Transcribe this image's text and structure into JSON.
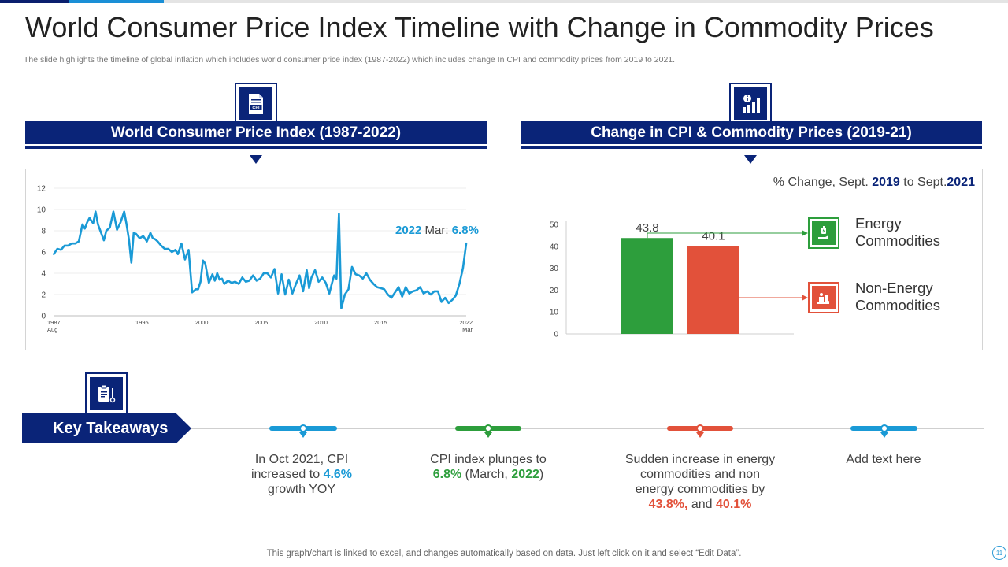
{
  "slide": {
    "title": "World Consumer Price Index Timeline with Change in Commodity Prices",
    "subtitle": "The slide highlights the timeline of global inflation which includes world consumer price index (1987-2022) which includes change In CPI and commodity prices from 2019 to 2021.",
    "footer": "This graph/chart is linked to excel,  and changes automatically based on data. Just left click on it and select “Edit Data”.",
    "page_number": "11"
  },
  "left_panel": {
    "header": "World Consumer Price Index (1987-2022)",
    "icon": "cpi-document-icon",
    "callout": {
      "year": "2022",
      "month": "Mar:",
      "value": "6.8%"
    }
  },
  "right_panel": {
    "header": "Change in CPI & Commodity Prices (2019-21)",
    "icon": "info-bar-chart-icon",
    "caption": {
      "prefix": "% Change, Sept. ",
      "from_year": "2019",
      "middle": " to Sept.",
      "to_year": "2021"
    },
    "legend": [
      {
        "label_line1": "Energy",
        "label_line2": "Commodities",
        "icon": "energy-commodity-icon",
        "color": "#2d9e3c"
      },
      {
        "label_line1": "Non-Energy",
        "label_line2": "Commodities",
        "icon": "non-energy-commodity-icon",
        "color": "#e2513a"
      }
    ]
  },
  "takeaways": {
    "label": "Key Takeaways",
    "icon": "clipboard-icon",
    "items": [
      {
        "line1": "In Oct 2021, CPI",
        "line2a": "increased to ",
        "highlight": "4.6%",
        "line3": "growth YOY",
        "color": "#1a9ad6"
      },
      {
        "line1": "CPI index plunges to",
        "highlight": "6.8%",
        "mid": " (March, ",
        "year": "2022",
        "end": ")",
        "color": "#2d9e3c"
      },
      {
        "line1": "Sudden increase in energy",
        "line2": "commodities and non",
        "line3": "energy commodities by",
        "h1": "43.8%,",
        "and": " and ",
        "h2": "40.1%",
        "color": "#e2513a"
      },
      {
        "line1": "Add text here",
        "color": "#1a9ad6"
      }
    ]
  },
  "colors": {
    "navy": "#0a2478",
    "blue": "#1a9ad6",
    "green": "#2d9e3c",
    "red": "#e2513a"
  },
  "chart_data": [
    {
      "type": "line",
      "title": "World Consumer Price Index (1987-2022)",
      "x_tick_labels": [
        "1987",
        "1995",
        "2000",
        "2005",
        "2010",
        "2015",
        "2022"
      ],
      "x_tick_sublabels": {
        "1987": "Aug",
        "2022": "Mar"
      },
      "x_tick_values": [
        1987.58,
        1995,
        2000,
        2005,
        2010,
        2015,
        2022.17
      ],
      "y_ticks": [
        0,
        2,
        4,
        6,
        8,
        10,
        12
      ],
      "ylim": [
        0,
        12
      ],
      "xlim": [
        1987.58,
        2022.17
      ],
      "series": [
        {
          "name": "World CPI",
          "color": "#1a9ad6",
          "x": [
            1987.6,
            1987.9,
            1988.2,
            1988.5,
            1988.8,
            1989.1,
            1989.4,
            1989.7,
            1990.0,
            1990.2,
            1990.4,
            1990.6,
            1990.9,
            1991.1,
            1991.3,
            1991.5,
            1991.8,
            1992.0,
            1992.3,
            1992.6,
            1992.9,
            1993.2,
            1993.5,
            1993.7,
            1993.9,
            1994.1,
            1994.3,
            1994.5,
            1994.8,
            1995.1,
            1995.4,
            1995.7,
            1995.9,
            1996.1,
            1996.3,
            1996.6,
            1996.9,
            1997.2,
            1997.5,
            1997.8,
            1998.0,
            1998.3,
            1998.6,
            1998.9,
            1999.2,
            1999.5,
            1999.7,
            1999.9,
            2000.1,
            2000.3,
            2000.6,
            2000.9,
            2001.1,
            2001.3,
            2001.5,
            2001.7,
            2001.9,
            2002.2,
            2002.5,
            2002.8,
            2003.1,
            2003.4,
            2003.7,
            2004.0,
            2004.3,
            2004.6,
            2004.9,
            2005.2,
            2005.5,
            2005.8,
            2006.1,
            2006.4,
            2006.7,
            2007.0,
            2007.3,
            2007.6,
            2007.9,
            2008.2,
            2008.5,
            2008.8,
            2009.0,
            2009.2,
            2009.5,
            2009.8,
            2010.1,
            2010.4,
            2010.7,
            2010.9,
            2011.1,
            2011.3,
            2011.5,
            2011.7,
            2012.0,
            2012.3,
            2012.6,
            2012.9,
            2013.2,
            2013.5,
            2013.8,
            2014.1,
            2014.4,
            2014.7,
            2015.0,
            2015.3,
            2015.6,
            2015.9,
            2016.2,
            2016.5,
            2016.8,
            2017.1,
            2017.4,
            2017.7,
            2018.0,
            2018.3,
            2018.6,
            2018.9,
            2019.2,
            2019.5,
            2019.8,
            2020.1,
            2020.4,
            2020.7,
            2021.0,
            2021.3,
            2021.6,
            2021.9,
            2022.17
          ],
          "y": [
            5.8,
            6.3,
            6.2,
            6.6,
            6.6,
            6.8,
            6.8,
            7.0,
            8.6,
            8.2,
            8.8,
            9.2,
            8.7,
            9.8,
            8.6,
            8.0,
            7.1,
            8.0,
            8.3,
            9.8,
            8.1,
            8.8,
            9.8,
            8.6,
            7.2,
            5.0,
            7.8,
            7.7,
            7.3,
            7.5,
            7.0,
            7.8,
            7.3,
            7.2,
            7.0,
            6.6,
            6.3,
            6.3,
            6.0,
            6.2,
            5.8,
            6.8,
            5.3,
            6.2,
            2.2,
            2.5,
            2.5,
            3.2,
            5.2,
            4.9,
            3.1,
            3.9,
            3.3,
            4.0,
            3.4,
            3.5,
            3.0,
            3.3,
            3.1,
            3.2,
            3.0,
            3.6,
            3.2,
            3.3,
            3.8,
            3.3,
            3.5,
            4.0,
            4.0,
            3.6,
            4.4,
            2.1,
            3.9,
            2.0,
            3.4,
            2.1,
            3.0,
            3.8,
            2.3,
            4.3,
            2.6,
            3.6,
            4.3,
            3.2,
            3.6,
            3.1,
            2.1,
            3.0,
            3.8,
            3.5,
            9.6,
            0.7,
            2.0,
            2.5,
            4.6,
            3.9,
            3.8,
            3.5,
            4.0,
            3.4,
            3.0,
            2.7,
            2.6,
            2.5,
            2.0,
            1.7,
            2.2,
            2.7,
            1.8,
            2.7,
            2.1,
            2.3,
            2.4,
            2.7,
            2.1,
            2.3,
            2.0,
            2.3,
            2.3,
            1.3,
            1.7,
            1.2,
            1.5,
            1.9,
            3.0,
            4.5,
            6.8
          ]
        }
      ],
      "annotations": [
        "2022 Mar: 6.8%"
      ]
    },
    {
      "type": "bar",
      "title": "Change in CPI & Commodity Prices (2019-21)",
      "subtitle": "% Change, Sept. 2019 to Sept.2021",
      "categories": [
        "Energy Commodities",
        "Non-Energy Commodities"
      ],
      "values": [
        43.8,
        40.1
      ],
      "value_labels": [
        "43.8",
        "40.1"
      ],
      "colors": [
        "#2d9e3c",
        "#e2513a"
      ],
      "y_ticks": [
        0,
        10,
        20,
        30,
        40,
        50
      ],
      "ylim": [
        0,
        50
      ],
      "grid": false
    }
  ]
}
